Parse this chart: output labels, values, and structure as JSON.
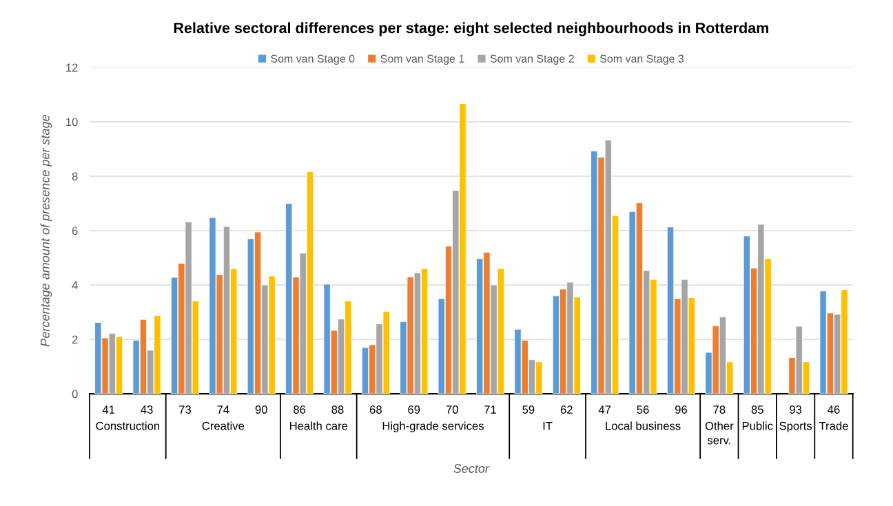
{
  "chart_data": {
    "type": "bar",
    "title": "Relative sectoral differences per stage: eight selected neighbourhoods in Rotterdam",
    "xlabel": "Sector",
    "ylabel": "Percentage amount of presence per stage",
    "categories": [
      "41",
      "43",
      "73",
      "74",
      "90",
      "86",
      "88",
      "68",
      "69",
      "70",
      "71",
      "59",
      "62",
      "47",
      "56",
      "96",
      "78",
      "85",
      "93",
      "46"
    ],
    "series": [
      {
        "name": "Som van Stage 0",
        "color": "#5b9bd5",
        "values": [
          2.62,
          1.97,
          4.28,
          6.48,
          5.7,
          7.0,
          4.03,
          1.7,
          2.65,
          3.5,
          4.97,
          2.37,
          3.6,
          8.93,
          6.7,
          6.13,
          1.52,
          5.8,
          null,
          3.78
        ]
      },
      {
        "name": "Som van Stage 1",
        "color": "#ed7d31",
        "values": [
          2.05,
          2.73,
          4.8,
          4.38,
          5.95,
          4.3,
          2.33,
          1.8,
          4.3,
          5.43,
          5.2,
          1.97,
          3.85,
          8.7,
          7.02,
          3.5,
          2.5,
          4.62,
          1.33,
          2.97
        ]
      },
      {
        "name": "Som van Stage 2",
        "color": "#a5a5a5",
        "values": [
          2.22,
          1.6,
          6.32,
          6.15,
          4.0,
          5.17,
          2.75,
          2.57,
          4.45,
          7.48,
          4.0,
          1.25,
          4.1,
          9.33,
          4.53,
          4.2,
          2.83,
          6.23,
          2.48,
          2.93
        ]
      },
      {
        "name": "Som van Stage 3",
        "color": "#ffc000",
        "values": [
          2.1,
          2.87,
          3.42,
          4.6,
          4.33,
          8.17,
          3.42,
          3.03,
          4.6,
          10.67,
          4.6,
          1.17,
          3.55,
          6.55,
          4.2,
          3.53,
          1.17,
          4.97,
          1.17,
          3.83
        ]
      }
    ],
    "annotations": [
      "Construction",
      "Creative",
      "Health care",
      "High-grade services",
      "IT",
      "Local business",
      "Other serv.",
      "Public",
      "Sports",
      "Trade"
    ],
    "ylim": [
      0,
      12
    ],
    "yticks": [
      0,
      2,
      4,
      6,
      8,
      10,
      12
    ],
    "grid": "y",
    "legend": "top"
  }
}
